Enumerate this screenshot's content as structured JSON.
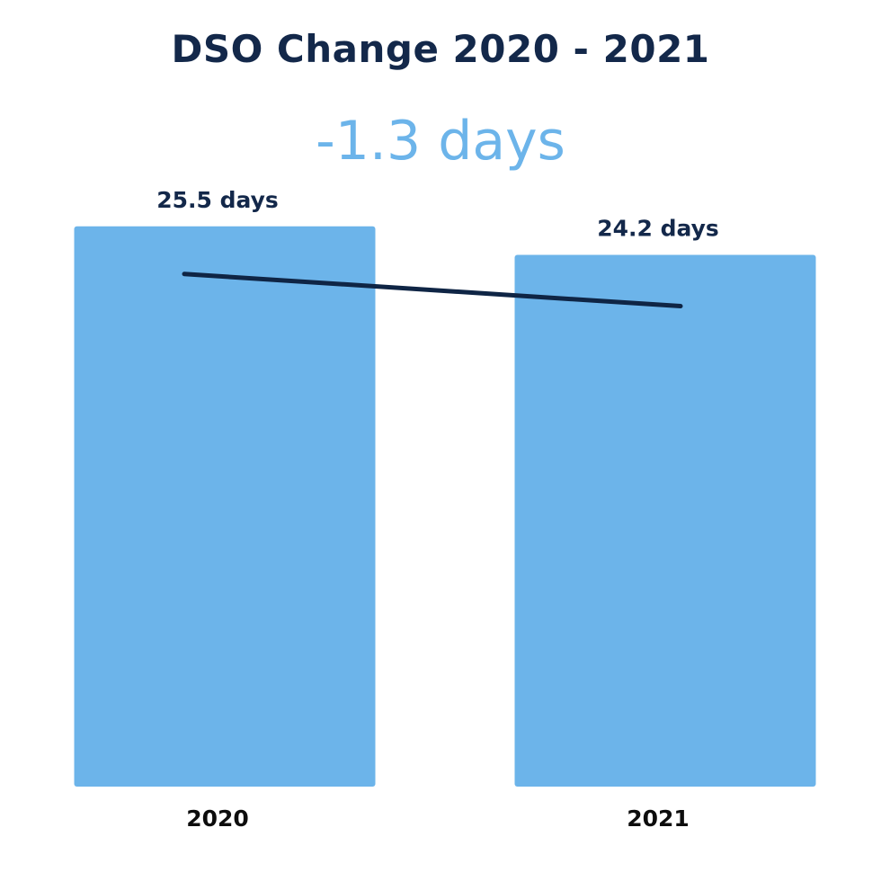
{
  "chart_data": {
    "type": "bar",
    "title": "DSO Change 2020 - 2021",
    "subtitle": "-1.3 days",
    "categories": [
      "2020",
      "2021"
    ],
    "values": [
      25.5,
      24.2
    ],
    "data_labels": [
      "25.5 days",
      "24.2 days"
    ],
    "trend_line": true,
    "xlabel": "",
    "ylabel": "",
    "ylim": [
      0,
      26.8
    ],
    "grid": false,
    "legend": "none",
    "colors": {
      "bar": "#6cb4ea",
      "title": "#13284a",
      "subtitle": "#6cb4ea",
      "trend_line": "#0f2545",
      "label": "#13284a",
      "tick": "#0d0d0d"
    }
  }
}
